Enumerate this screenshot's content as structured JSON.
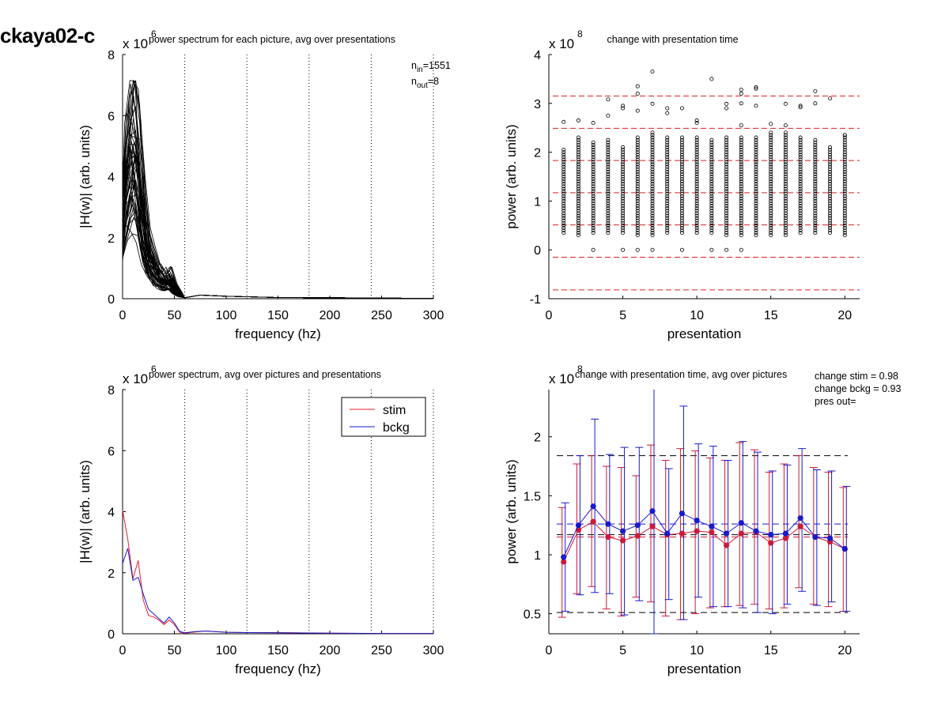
{
  "page_title": "ckaya02-c",
  "chart_data": [
    {
      "id": "tl",
      "type": "line",
      "title": "power spectrum for each picture, avg over presentations",
      "xlabel": "frequency (hz)",
      "ylabel": "|H(w)| (arb. units)",
      "xlim": [
        0,
        300
      ],
      "ylim": [
        0,
        8
      ],
      "xticks": [
        0,
        50,
        100,
        150,
        200,
        250,
        300
      ],
      "yticks": [
        0,
        2,
        4,
        6,
        8
      ],
      "y_multiplier_base": "x 10",
      "y_multiplier_exp": "6",
      "vlines": [
        60,
        120,
        180,
        240,
        300
      ],
      "annotations": [
        {
          "main": "n",
          "sub": "in",
          "rest": "=1551"
        },
        {
          "main": "n",
          "sub": "out",
          "rest": "=8"
        }
      ],
      "series": [
        {
          "values_x": [
            0,
            5,
            10,
            15,
            20,
            25,
            30,
            35,
            40,
            45,
            50,
            55,
            60,
            75,
            100,
            150,
            200,
            250,
            300
          ],
          "values_y": [
            2.8,
            4.5,
            5.5,
            4.6,
            2.6,
            1.6,
            1.1,
            0.8,
            0.6,
            0.7,
            0.4,
            0.15,
            0.03,
            0.12,
            0.08,
            0.04,
            0.03,
            0.02,
            0.01
          ]
        }
      ]
    },
    {
      "id": "tr",
      "type": "scatter",
      "title": "change with presentation time",
      "xlabel": "presentation",
      "ylabel": "power (arb. units)",
      "xlim": [
        0,
        21
      ],
      "ylim": [
        -1,
        4
      ],
      "xticks": [
        0,
        5,
        10,
        15,
        20
      ],
      "yticks": [
        -1,
        0,
        1,
        2,
        3,
        4
      ],
      "y_multiplier_base": "x 10",
      "y_multiplier_exp": "8",
      "hlines": [
        3.15,
        2.49,
        1.83,
        1.17,
        0.51,
        -0.15,
        -0.82
      ],
      "outliers": [
        {
          "x": 1,
          "y": 2.62
        },
        {
          "x": 2,
          "y": 2.65
        },
        {
          "x": 3,
          "y": 2.6
        },
        {
          "x": 3,
          "y": 0.0
        },
        {
          "x": 4,
          "y": 3.08
        },
        {
          "x": 4,
          "y": 2.75
        },
        {
          "x": 5,
          "y": 2.95
        },
        {
          "x": 5,
          "y": 2.9
        },
        {
          "x": 5,
          "y": 0.0
        },
        {
          "x": 6,
          "y": 3.35
        },
        {
          "x": 6,
          "y": 3.2
        },
        {
          "x": 6,
          "y": 2.85
        },
        {
          "x": 6,
          "y": 0.0
        },
        {
          "x": 7,
          "y": 3.65
        },
        {
          "x": 7,
          "y": 2.99
        },
        {
          "x": 7,
          "y": 0.0
        },
        {
          "x": 8,
          "y": 2.9
        },
        {
          "x": 8,
          "y": 2.8
        },
        {
          "x": 9,
          "y": 2.9
        },
        {
          "x": 9,
          "y": 0.0
        },
        {
          "x": 10,
          "y": 2.65
        },
        {
          "x": 10,
          "y": 2.6
        },
        {
          "x": 11,
          "y": 3.5
        },
        {
          "x": 11,
          "y": 0.0
        },
        {
          "x": 12,
          "y": 2.99
        },
        {
          "x": 12,
          "y": 2.9
        },
        {
          "x": 12,
          "y": 0.0
        },
        {
          "x": 13,
          "y": 3.28
        },
        {
          "x": 13,
          "y": 3.2
        },
        {
          "x": 13,
          "y": 3.0
        },
        {
          "x": 13,
          "y": 2.55
        },
        {
          "x": 13,
          "y": 0.0
        },
        {
          "x": 14,
          "y": 3.33
        },
        {
          "x": 14,
          "y": 3.3
        },
        {
          "x": 14,
          "y": 2.95
        },
        {
          "x": 15,
          "y": 2.58
        },
        {
          "x": 16,
          "y": 2.99
        },
        {
          "x": 16,
          "y": 2.55
        },
        {
          "x": 17,
          "y": 2.95
        },
        {
          "x": 17,
          "y": 2.92
        },
        {
          "x": 18,
          "y": 3.25
        },
        {
          "x": 18,
          "y": 3.0
        },
        {
          "x": 19,
          "y": 3.1
        },
        {
          "x": 20,
          "y": 2.35
        }
      ],
      "column_ranges": [
        {
          "x": 1,
          "min": 0.35,
          "max": 2.05
        },
        {
          "x": 2,
          "min": 0.3,
          "max": 2.3
        },
        {
          "x": 3,
          "min": 0.35,
          "max": 2.2
        },
        {
          "x": 4,
          "min": 0.35,
          "max": 2.25
        },
        {
          "x": 5,
          "min": 0.35,
          "max": 2.1
        },
        {
          "x": 6,
          "min": 0.3,
          "max": 2.3
        },
        {
          "x": 7,
          "min": 0.3,
          "max": 2.4
        },
        {
          "x": 8,
          "min": 0.35,
          "max": 2.3
        },
        {
          "x": 9,
          "min": 0.35,
          "max": 2.3
        },
        {
          "x": 10,
          "min": 0.35,
          "max": 2.3
        },
        {
          "x": 11,
          "min": 0.35,
          "max": 2.25
        },
        {
          "x": 12,
          "min": 0.3,
          "max": 2.3
        },
        {
          "x": 13,
          "min": 0.3,
          "max": 2.3
        },
        {
          "x": 14,
          "min": 0.3,
          "max": 2.3
        },
        {
          "x": 15,
          "min": 0.3,
          "max": 2.4
        },
        {
          "x": 16,
          "min": 0.3,
          "max": 2.4
        },
        {
          "x": 17,
          "min": 0.35,
          "max": 2.3
        },
        {
          "x": 18,
          "min": 0.35,
          "max": 2.25
        },
        {
          "x": 19,
          "min": 0.35,
          "max": 2.1
        },
        {
          "x": 20,
          "min": 0.3,
          "max": 2.35
        }
      ]
    },
    {
      "id": "bl",
      "type": "line",
      "title": "power spectrum, avg over pictures and presentations",
      "xlabel": "frequency (hz)",
      "ylabel": "|H(w)| (arb. units)",
      "xlim": [
        0,
        300
      ],
      "ylim": [
        0,
        8
      ],
      "xticks": [
        0,
        50,
        100,
        150,
        200,
        250,
        300
      ],
      "yticks": [
        0,
        2,
        4,
        6,
        8
      ],
      "y_multiplier_base": "x 10",
      "y_multiplier_exp": "6",
      "vlines": [
        60,
        120,
        180,
        240,
        300
      ],
      "legend": "top-right",
      "series": [
        {
          "name": "stim",
          "color": "#e8202a",
          "x": [
            0,
            5,
            10,
            15,
            20,
            25,
            30,
            35,
            40,
            45,
            50,
            55,
            60,
            70,
            80,
            100,
            120,
            150,
            200,
            250,
            300
          ],
          "y": [
            4.05,
            3.1,
            1.8,
            2.4,
            1.1,
            0.6,
            0.55,
            0.45,
            0.3,
            0.45,
            0.3,
            0.05,
            0.02,
            0.06,
            0.09,
            0.05,
            0.04,
            0.04,
            0.02,
            0.01,
            0.01
          ]
        },
        {
          "name": "bckg",
          "color": "#1a1acc",
          "x": [
            0,
            5,
            10,
            15,
            20,
            25,
            30,
            35,
            40,
            45,
            50,
            55,
            60,
            70,
            80,
            100,
            120,
            150,
            200,
            250,
            300
          ],
          "y": [
            2.3,
            2.8,
            1.75,
            1.85,
            1.3,
            0.8,
            0.65,
            0.5,
            0.35,
            0.55,
            0.35,
            0.08,
            0.03,
            0.07,
            0.09,
            0.05,
            0.04,
            0.03,
            0.02,
            0.01,
            0.01
          ]
        }
      ]
    },
    {
      "id": "br",
      "type": "line",
      "title": "change with presentation time, avg over pictures",
      "xlabel": "presentation",
      "ylabel": "power (arb. units)",
      "xlim": [
        0,
        21
      ],
      "ylim": [
        0.33,
        2.4
      ],
      "xticks": [
        0,
        5,
        10,
        15,
        20
      ],
      "yticks": [
        0.5,
        1,
        1.5,
        2
      ],
      "y_multiplier_base": "x 10",
      "y_multiplier_exp": "8",
      "hlines_black": [
        1.84,
        1.17,
        0.51
      ],
      "hline_blue": 1.26,
      "hline_red": 1.15,
      "notes": [
        "change stim = 0.98",
        "change bckg = 0.93",
        "pres out="
      ],
      "series": [
        {
          "name": "stim",
          "color": "#cc1a3a",
          "x": [
            1,
            2,
            3,
            4,
            5,
            6,
            7,
            8,
            9,
            10,
            11,
            12,
            13,
            14,
            15,
            16,
            17,
            18,
            19,
            20
          ],
          "y": [
            0.94,
            1.21,
            1.28,
            1.15,
            1.12,
            1.16,
            1.24,
            1.17,
            1.18,
            1.2,
            1.19,
            1.08,
            1.18,
            1.19,
            1.1,
            1.14,
            1.24,
            1.15,
            1.11,
            1.05
          ],
          "err_low": [
            0.47,
            0.67,
            0.73,
            0.54,
            0.48,
            0.64,
            0.6,
            0.48,
            0.45,
            0.5,
            0.55,
            0.56,
            0.57,
            0.58,
            0.54,
            0.55,
            0.72,
            0.58,
            0.56,
            0.52
          ],
          "err_high": [
            1.4,
            1.77,
            1.84,
            1.75,
            1.74,
            1.67,
            1.93,
            1.8,
            1.9,
            1.88,
            1.82,
            1.8,
            1.95,
            1.89,
            1.7,
            1.77,
            1.84,
            1.74,
            1.7,
            1.57
          ]
        },
        {
          "name": "bckg",
          "color": "#1a1acc",
          "x": [
            1,
            2,
            3,
            4,
            5,
            6,
            7,
            8,
            9,
            10,
            11,
            12,
            13,
            14,
            15,
            16,
            17,
            18,
            19,
            20
          ],
          "y": [
            0.98,
            1.25,
            1.41,
            1.26,
            1.2,
            1.25,
            1.37,
            1.18,
            1.35,
            1.29,
            1.24,
            1.18,
            1.27,
            1.2,
            1.17,
            1.18,
            1.31,
            1.15,
            1.14,
            1.05
          ],
          "err_low": [
            0.52,
            0.66,
            0.68,
            0.67,
            0.49,
            0.61,
            0.33,
            0.62,
            0.45,
            0.64,
            0.56,
            0.56,
            0.55,
            0.51,
            0.5,
            0.58,
            0.69,
            0.57,
            0.6,
            0.52
          ],
          "err_high": [
            1.44,
            1.84,
            2.15,
            1.85,
            1.91,
            1.91,
            2.45,
            1.73,
            2.26,
            1.94,
            1.92,
            1.8,
            1.96,
            1.87,
            1.71,
            1.76,
            1.9,
            1.72,
            1.71,
            1.58
          ]
        }
      ]
    }
  ]
}
